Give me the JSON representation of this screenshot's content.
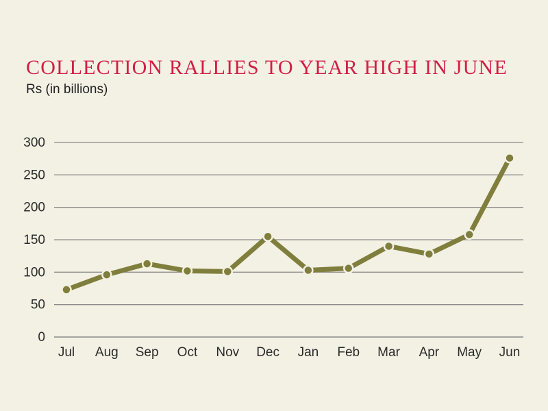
{
  "chart_data": {
    "type": "line",
    "title": "COLLECTION RALLIES TO YEAR HIGH IN JUNE",
    "subtitle": "Rs (in billions)",
    "categories": [
      "Jul",
      "Aug",
      "Sep",
      "Oct",
      "Nov",
      "Dec",
      "Jan",
      "Feb",
      "Mar",
      "Apr",
      "May",
      "Jun"
    ],
    "series": [
      {
        "values": [
          73,
          96,
          113,
          102,
          101,
          155,
          103,
          106,
          140,
          128,
          158,
          276
        ]
      }
    ],
    "y_ticks": [
      "0",
      "50",
      "100",
      "150",
      "200",
      "250",
      "300"
    ],
    "ylim": [
      0,
      300
    ],
    "grid": true,
    "legend": "none",
    "colors": {
      "line": "#7f7e3c",
      "marker_fill": "#7f7e3c",
      "marker_stroke": "#f3f1e4",
      "grid": "#8a8a8a",
      "title": "#d01f45",
      "background": "#f3f1e4"
    }
  }
}
